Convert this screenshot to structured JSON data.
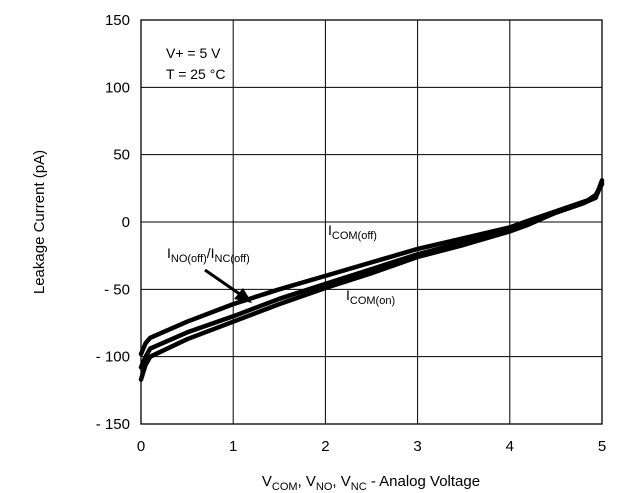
{
  "chart_data": {
    "type": "line",
    "xlabel": {
      "main": "V",
      "parts": [
        {
          "sub": "COM",
          "text": ", V"
        },
        {
          "sub": "NO",
          "text": ", V"
        },
        {
          "sub": "NC",
          "text": " - Analog Voltage"
        }
      ]
    },
    "ylabel": "Leakage Current (pA)",
    "xlim": [
      0,
      5
    ],
    "ylim": [
      -150,
      150
    ],
    "xticks": [
      0,
      1,
      2,
      3,
      4,
      5
    ],
    "yticks": [
      150,
      100,
      50,
      0,
      -50,
      -100,
      -150
    ],
    "ytick_labels": [
      "150",
      "100",
      "50",
      "0",
      "- 50",
      "- 100",
      "- 150"
    ],
    "grid": true,
    "conditions": [
      "V+ = 5 V",
      "T = 25 °C"
    ],
    "series": [
      {
        "name": "I_COM(off)",
        "label_main": "I",
        "label_sub": "COM(off)",
        "x": [
          0,
          0.05,
          0.1,
          0.5,
          1,
          1.5,
          2,
          2.5,
          3,
          3.5,
          4,
          4.2,
          4.5,
          4.8,
          4.93,
          5.0
        ],
        "y": [
          -98,
          -90,
          -86,
          -74,
          -61,
          -50,
          -40,
          -30,
          -20,
          -12,
          -4,
          1,
          8,
          15,
          18,
          31
        ]
      },
      {
        "name": "I_NO(off)/I_NC(off)",
        "label_main": "I",
        "label_sub": "NO(off)",
        "label_sep": "/I",
        "label_sub2": "NC(off)",
        "x": [
          0,
          0.05,
          0.1,
          0.5,
          1,
          1.5,
          2,
          2.5,
          3,
          3.5,
          4,
          4.2,
          4.5,
          4.8,
          4.93,
          5.0
        ],
        "y": [
          -108,
          -100,
          -94,
          -82,
          -70,
          -57,
          -46,
          -35,
          -24,
          -15,
          -6,
          -1,
          7,
          14,
          18,
          29
        ]
      },
      {
        "name": "I_COM(on)",
        "label_main": "I",
        "label_sub": "COM(on)",
        "x": [
          0,
          0.05,
          0.1,
          0.5,
          1,
          1.5,
          2,
          2.5,
          3,
          3.5,
          4,
          4.2,
          4.5,
          4.8,
          4.93,
          5.0
        ],
        "y": [
          -117,
          -106,
          -100,
          -87,
          -74,
          -61,
          -49,
          -38,
          -26,
          -17,
          -7,
          -2,
          7,
          14,
          20,
          28
        ]
      }
    ],
    "line_color": "#000000"
  }
}
